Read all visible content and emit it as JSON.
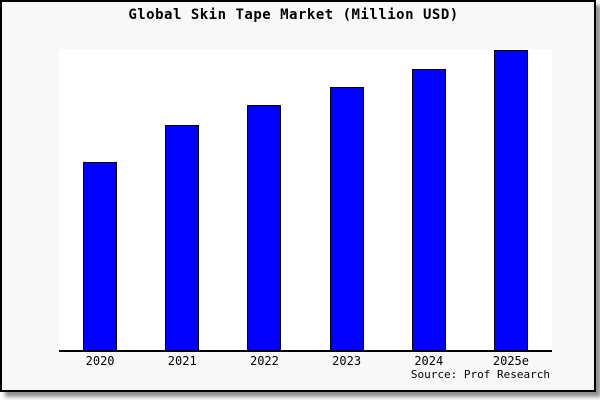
{
  "chart_data": {
    "type": "bar",
    "title": "Global Skin Tape Market (Million USD)",
    "categories": [
      "2020",
      "2021",
      "2022",
      "2023",
      "2024",
      "2025e"
    ],
    "values": [
      62.7,
      75.0,
      81.7,
      87.7,
      93.7,
      100.0
    ],
    "value_scale_note": "no y-axis ticks or data labels shown; values are relative bar heights normalized so 2025e = 100",
    "xlabel": "",
    "ylabel": "",
    "ylim": [
      0,
      100
    ],
    "grid": false,
    "legend": false,
    "y_axis_visible": false,
    "bar_color": "#0000ff",
    "bar_border_color": "#000000"
  },
  "source": {
    "text": "Source: Prof Research"
  },
  "colors": {
    "background": "#f8f8f8",
    "plot_background": "#ffffff",
    "axis": "#000000",
    "text": "#000000",
    "frame_border": "#000000",
    "shadow": "#8f8f8f"
  }
}
